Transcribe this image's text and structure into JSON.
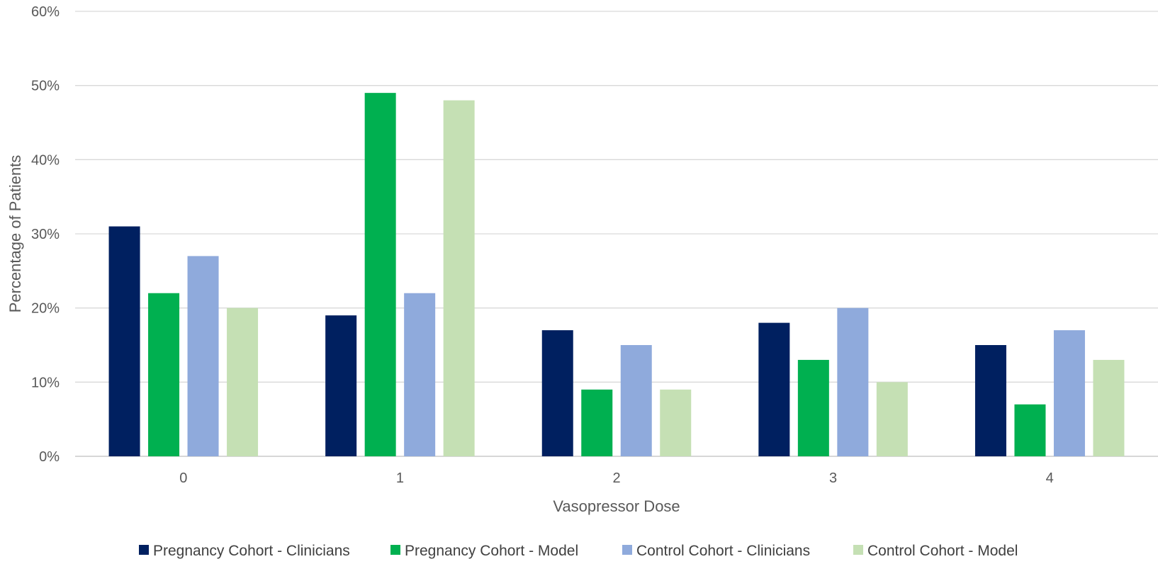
{
  "chart_data": {
    "type": "bar",
    "title": "",
    "xlabel": "Vasopressor Dose",
    "ylabel": "Percentage of Patients",
    "categories": [
      "0",
      "1",
      "2",
      "3",
      "4"
    ],
    "y_ticks": [
      "0%",
      "10%",
      "20%",
      "30%",
      "40%",
      "50%",
      "60%"
    ],
    "ylim": [
      0,
      60
    ],
    "grid": true,
    "legend_position": "bottom",
    "series": [
      {
        "name": "Pregnancy Cohort - Clinicians",
        "color": "#002060",
        "values": [
          31,
          19,
          17,
          18,
          15
        ]
      },
      {
        "name": "Pregnancy Cohort - Model",
        "color": "#00B050",
        "values": [
          22,
          49,
          9,
          13,
          7
        ]
      },
      {
        "name": "Control Cohort - Clinicians",
        "color": "#8FAADC",
        "values": [
          27,
          22,
          15,
          20,
          17
        ]
      },
      {
        "name": "Control Cohort - Model",
        "color": "#C5E0B4",
        "values": [
          20,
          48,
          9,
          10,
          13
        ]
      }
    ]
  }
}
